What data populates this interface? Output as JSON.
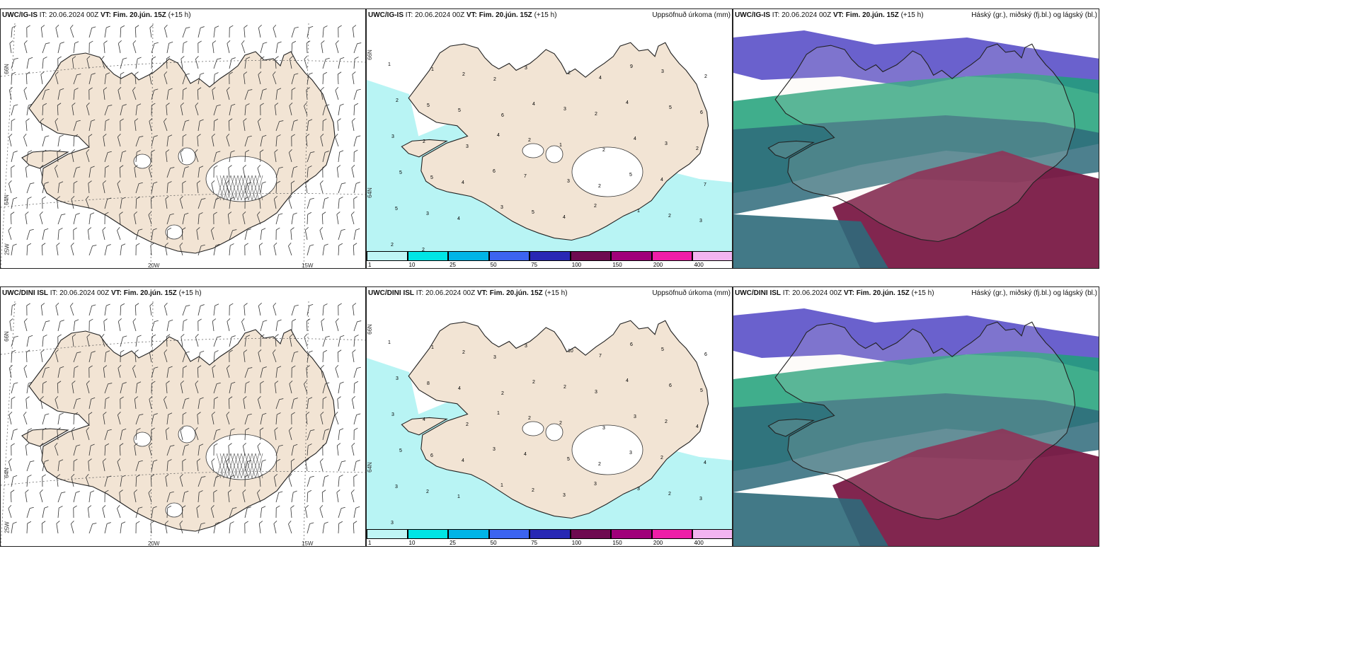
{
  "rows": [
    {
      "model": "UWC/IG-IS",
      "it": "IT: 20.06.2024 00Z",
      "vt_label": "VT:",
      "vt_value": "Fim. 20.jún. 15Z",
      "lead": "(+15 h)",
      "panel1": {
        "lat_labels": [
          "66N",
          "64N"
        ],
        "lon_labels": [
          "25W",
          "20W",
          "15W"
        ]
      },
      "panel2": {
        "title": "Uppsöfnuð úrkoma (mm)",
        "lat_labels": [
          "66N",
          "64N"
        ],
        "precip_labels": [
          "1",
          "1",
          "2",
          "2",
          "3",
          "2",
          "4",
          "9",
          "3",
          "2",
          "2",
          "5",
          "5",
          "6",
          "4",
          "3",
          "2",
          "4",
          "5",
          "6",
          "3",
          "2",
          "3",
          "4",
          "2",
          "1",
          "2",
          "4",
          "3",
          "2",
          "5",
          "5",
          "4",
          "6",
          "7",
          "3",
          "2",
          "5",
          "4",
          "7",
          "5",
          "3",
          "4",
          "3",
          "5",
          "4",
          "2",
          "1",
          "2",
          "3",
          "2",
          "2",
          "3"
        ]
      },
      "panel3": {
        "title": "Háský (gr.), miðský (fj.bl.) og lágský (bl.)"
      }
    },
    {
      "model": "UWC/DINI ISL",
      "it": "IT: 20.06.2024 00Z",
      "vt_label": "VT:",
      "vt_value": "Fim. 20.jún. 15Z",
      "lead": "(+15 h)",
      "panel1": {
        "lat_labels": [
          "66N",
          "64N"
        ],
        "lon_labels": [
          "25W",
          "20W",
          "15W"
        ]
      },
      "panel2": {
        "title": "Uppsöfnuð úrkoma (mm)",
        "lat_labels": [
          "66N",
          "64N"
        ],
        "precip_labels": [
          "1",
          "1",
          "2",
          "3",
          "3",
          "10",
          "7",
          "6",
          "5",
          "6",
          "3",
          "8",
          "4",
          "2",
          "2",
          "2",
          "3",
          "4",
          "6",
          "5",
          "3",
          "4",
          "2",
          "1",
          "2",
          "2",
          "3",
          "3",
          "2",
          "4",
          "5",
          "6",
          "4",
          "3",
          "4",
          "5",
          "2",
          "3",
          "2",
          "4",
          "3",
          "2",
          "1",
          "1",
          "2",
          "3",
          "3",
          "3",
          "2",
          "3",
          "3"
        ]
      },
      "panel3": {
        "title": "Háský (gr.), miðský (fj.bl.) og lágský (bl.)"
      }
    }
  ],
  "colorbar": {
    "labels": [
      "1",
      "10",
      "25",
      "50",
      "75",
      "100",
      "150",
      "200",
      "400"
    ],
    "colors": [
      "#bff5f5",
      "#00e5e5",
      "#00b4e6",
      "#3c64f0",
      "#2828b4",
      "#6e0a50",
      "#a0007a",
      "#ee1ea8",
      "#f2b4f0"
    ]
  },
  "colors": {
    "land": "#f2e4d4",
    "sea_cloud_top": "#5a50c8",
    "cloud_green": "#1ea078",
    "cloud_dark": "#2e6a7a",
    "cloud_maroon": "#7a1a46",
    "precip": "#b8f4f4"
  }
}
